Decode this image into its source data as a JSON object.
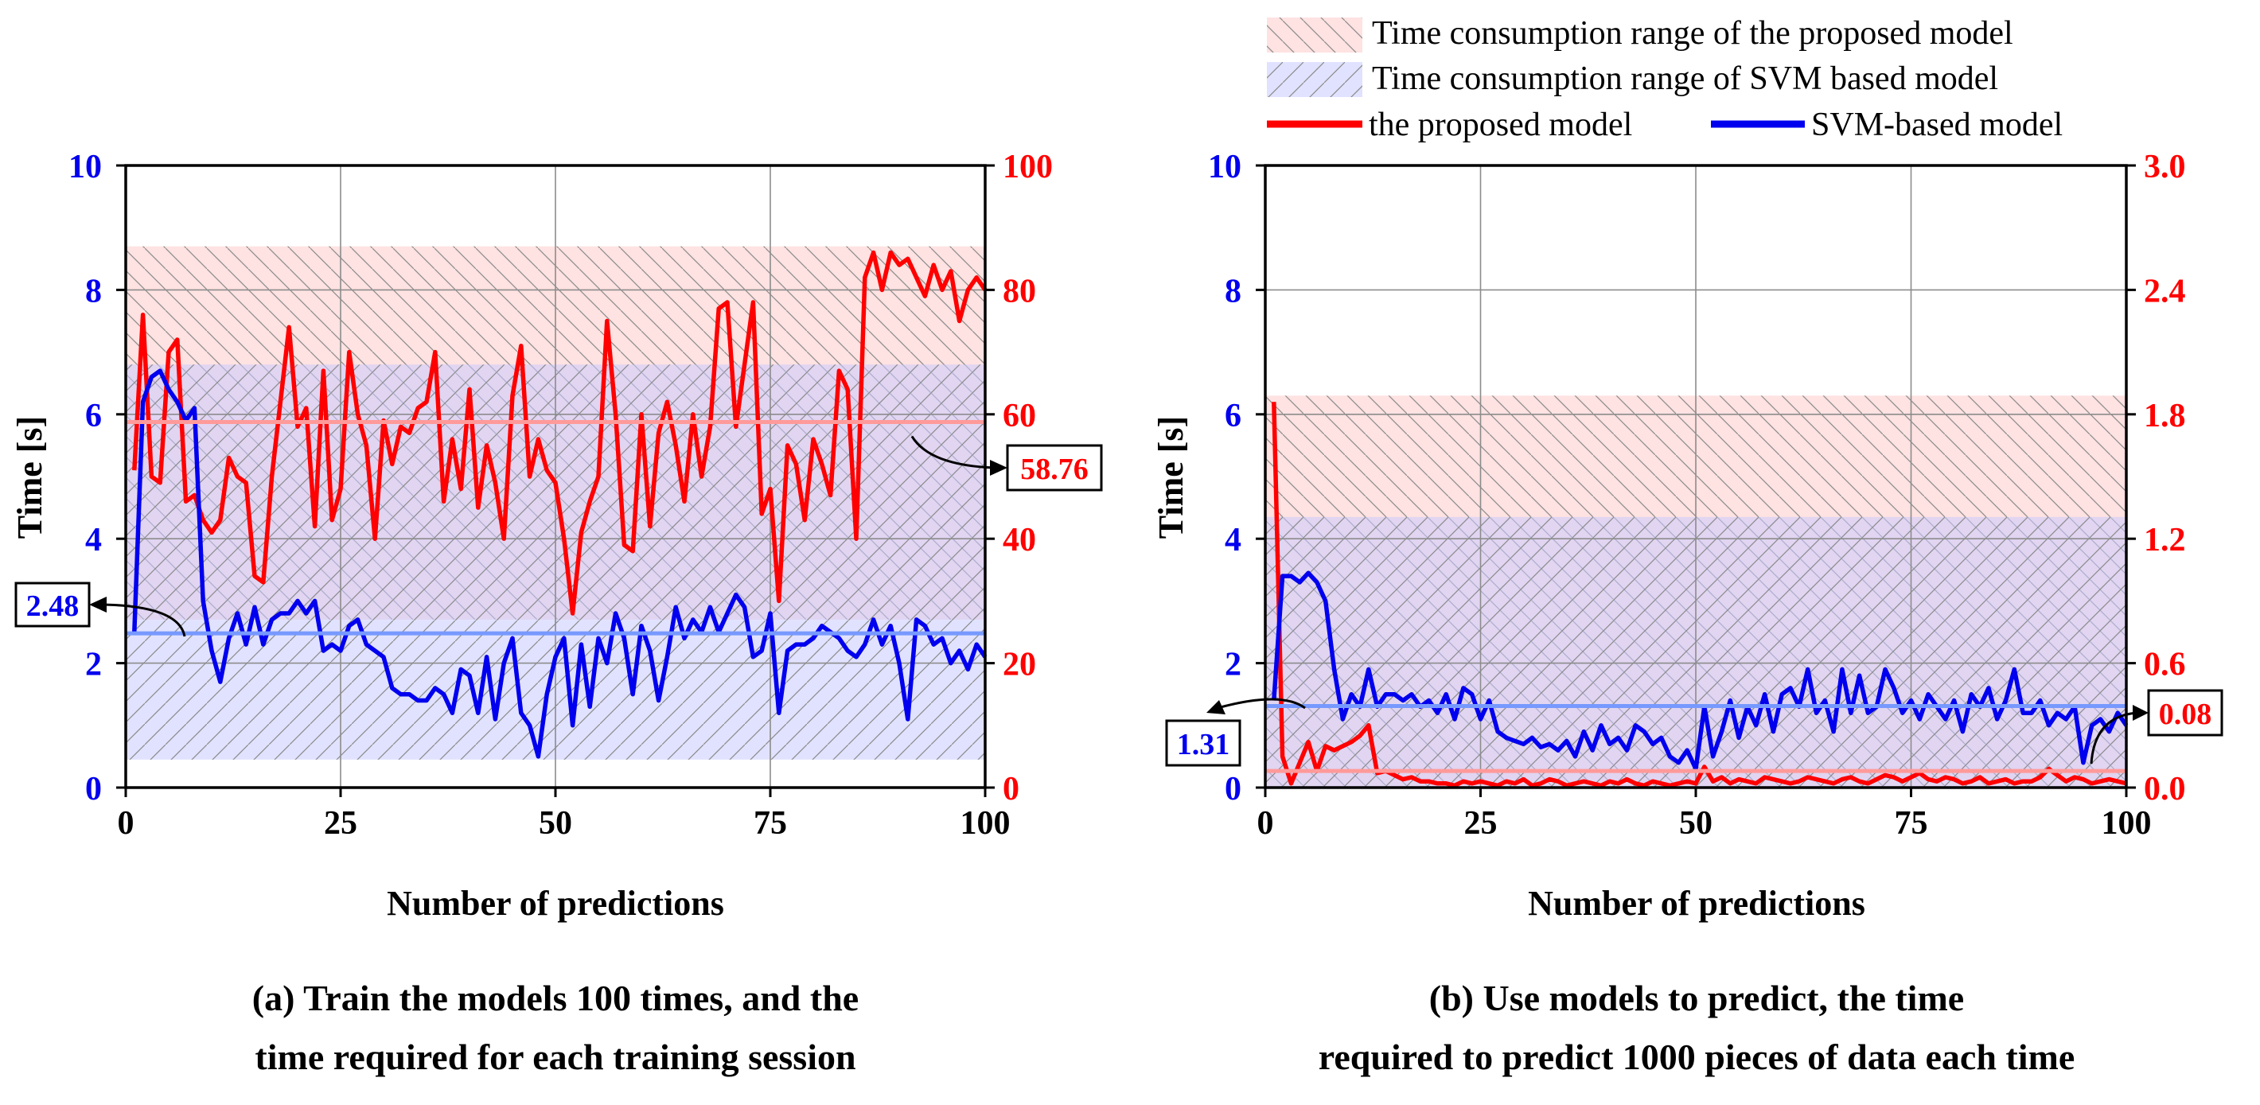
{
  "legend": {
    "proposed_range": "Time consumption range of the proposed model",
    "svm_range": "Time consumption range of SVM based model",
    "proposed_line": "the proposed model",
    "svm_line": "SVM-based model"
  },
  "colors": {
    "red": "#ff0000",
    "blue": "#0000ee",
    "avg_red": "#ff9a9a",
    "avg_blue": "#7799ff",
    "band_red": "#ffcaca",
    "band_blue": "#c9caff"
  },
  "chart_data": [
    {
      "type": "line",
      "xlabel": "Number of predictions",
      "ylabel": "Time [s]",
      "caption_line1": "(a) Train the models 100 times, and the",
      "caption_line2": "time required for each training session",
      "x_ticks": [
        "0",
        "25",
        "50",
        "75",
        "100"
      ],
      "y_left_ticks": [
        "0",
        "2",
        "4",
        "6",
        "8",
        "10"
      ],
      "y_right_ticks": [
        "0",
        "20",
        "40",
        "60",
        "80",
        "100"
      ],
      "xlim": [
        0,
        100
      ],
      "ylim_left": [
        0,
        10
      ],
      "ylim_right": [
        0,
        100
      ],
      "proposed_range": [
        27,
        87
      ],
      "svm_range": [
        0.45,
        6.8
      ],
      "proposed_avg": 58.76,
      "svm_avg": 2.48,
      "proposed_avg_label": "58.76",
      "svm_avg_label": "2.48",
      "series": [
        {
          "name": "the proposed model",
          "axis": "right",
          "color": "#ff0000",
          "x": [
            1,
            2,
            3,
            4,
            5,
            6,
            7,
            8,
            9,
            10,
            11,
            12,
            13,
            14,
            15,
            16,
            17,
            18,
            19,
            20,
            21,
            22,
            23,
            24,
            25,
            26,
            27,
            28,
            29,
            30,
            31,
            32,
            33,
            34,
            35,
            36,
            37,
            38,
            39,
            40,
            41,
            42,
            43,
            44,
            45,
            46,
            47,
            48,
            49,
            50,
            51,
            52,
            53,
            54,
            55,
            56,
            57,
            58,
            59,
            60,
            61,
            62,
            63,
            64,
            65,
            66,
            67,
            68,
            69,
            70,
            71,
            72,
            73,
            74,
            75,
            76,
            77,
            78,
            79,
            80,
            81,
            82,
            83,
            84,
            85,
            86,
            87,
            88,
            89,
            90,
            91,
            92,
            93,
            94,
            95,
            96,
            97,
            98,
            99,
            100
          ],
          "values": [
            51,
            76,
            50,
            49,
            70,
            72,
            46,
            47,
            43,
            41,
            43,
            53,
            50,
            49,
            34,
            33,
            50,
            62,
            74,
            58,
            61,
            42,
            67,
            43,
            48,
            70,
            60,
            55,
            40,
            59,
            52,
            58,
            57,
            61,
            62,
            70,
            46,
            56,
            48,
            64,
            45,
            55,
            49,
            40,
            63,
            71,
            50,
            56,
            51,
            49,
            40,
            28,
            41,
            46,
            50,
            75,
            60,
            39,
            38,
            60,
            42,
            57,
            62,
            55,
            46,
            60,
            50,
            58,
            77,
            78,
            58,
            68,
            78,
            44,
            48,
            30,
            55,
            52,
            43,
            56,
            52,
            47,
            67,
            64,
            40,
            82,
            86,
            80,
            86,
            84,
            85,
            82,
            79,
            84,
            80,
            83,
            75,
            80,
            82,
            80
          ]
        },
        {
          "name": "SVM-based model",
          "axis": "left",
          "color": "#0000ee",
          "x": [
            1,
            2,
            3,
            4,
            5,
            6,
            7,
            8,
            9,
            10,
            11,
            12,
            13,
            14,
            15,
            16,
            17,
            18,
            19,
            20,
            21,
            22,
            23,
            24,
            25,
            26,
            27,
            28,
            29,
            30,
            31,
            32,
            33,
            34,
            35,
            36,
            37,
            38,
            39,
            40,
            41,
            42,
            43,
            44,
            45,
            46,
            47,
            48,
            49,
            50,
            51,
            52,
            53,
            54,
            55,
            56,
            57,
            58,
            59,
            60,
            61,
            62,
            63,
            64,
            65,
            66,
            67,
            68,
            69,
            70,
            71,
            72,
            73,
            74,
            75,
            76,
            77,
            78,
            79,
            80,
            81,
            82,
            83,
            84,
            85,
            86,
            87,
            88,
            89,
            90,
            91,
            92,
            93,
            94,
            95,
            96,
            97,
            98,
            99,
            100
          ],
          "values": [
            2.5,
            6.2,
            6.6,
            6.7,
            6.4,
            6.2,
            5.9,
            6.1,
            3.0,
            2.2,
            1.7,
            2.4,
            2.8,
            2.3,
            2.9,
            2.3,
            2.7,
            2.8,
            2.8,
            3.0,
            2.8,
            3.0,
            2.2,
            2.3,
            2.2,
            2.6,
            2.7,
            2.3,
            2.2,
            2.1,
            1.6,
            1.5,
            1.5,
            1.4,
            1.4,
            1.6,
            1.5,
            1.2,
            1.9,
            1.8,
            1.2,
            2.1,
            1.1,
            2.0,
            2.4,
            1.2,
            1.0,
            0.5,
            1.5,
            2.1,
            2.4,
            1.0,
            2.3,
            1.3,
            2.4,
            2.0,
            2.8,
            2.4,
            1.5,
            2.6,
            2.2,
            1.4,
            2.1,
            2.9,
            2.4,
            2.7,
            2.5,
            2.9,
            2.5,
            2.8,
            3.1,
            2.9,
            2.1,
            2.2,
            2.8,
            1.2,
            2.2,
            2.3,
            2.3,
            2.4,
            2.6,
            2.5,
            2.4,
            2.2,
            2.1,
            2.3,
            2.7,
            2.3,
            2.6,
            2.0,
            1.1,
            2.7,
            2.6,
            2.3,
            2.4,
            2.0,
            2.2,
            1.9,
            2.3,
            2.1
          ]
        }
      ]
    },
    {
      "type": "line",
      "xlabel": "Number of predictions",
      "ylabel": "Time [s]",
      "caption_line1": "(b) Use models to predict, the time",
      "caption_line2": "required to predict 1000 pieces of data each time",
      "x_ticks": [
        "0",
        "25",
        "50",
        "75",
        "100"
      ],
      "y_left_ticks": [
        "0",
        "2",
        "4",
        "6",
        "8",
        "10"
      ],
      "y_right_ticks": [
        "0.0",
        "0.6",
        "1.2",
        "1.8",
        "2.4",
        "3.0"
      ],
      "xlim": [
        0,
        100
      ],
      "ylim_left": [
        0,
        10
      ],
      "ylim_right": [
        0,
        3
      ],
      "proposed_range": [
        0.0,
        1.89
      ],
      "svm_range": [
        0.0,
        4.35
      ],
      "proposed_avg": 0.08,
      "svm_avg": 1.31,
      "proposed_avg_label": "0.08",
      "svm_avg_label": "1.31",
      "series": [
        {
          "name": "the proposed model",
          "axis": "right",
          "color": "#ff0000",
          "x": [
            1,
            2,
            3,
            4,
            5,
            6,
            7,
            8,
            9,
            10,
            11,
            12,
            13,
            14,
            15,
            16,
            17,
            18,
            19,
            20,
            21,
            22,
            23,
            24,
            25,
            26,
            27,
            28,
            29,
            30,
            31,
            32,
            33,
            34,
            35,
            36,
            37,
            38,
            39,
            40,
            41,
            42,
            43,
            44,
            45,
            46,
            47,
            48,
            49,
            50,
            51,
            52,
            53,
            54,
            55,
            56,
            57,
            58,
            59,
            60,
            61,
            62,
            63,
            64,
            65,
            66,
            67,
            68,
            69,
            70,
            71,
            72,
            73,
            74,
            75,
            76,
            77,
            78,
            79,
            80,
            81,
            82,
            83,
            84,
            85,
            86,
            87,
            88,
            89,
            90,
            91,
            92,
            93,
            94,
            95,
            96,
            97,
            98,
            99,
            100
          ],
          "values": [
            1.86,
            0.15,
            0.02,
            0.12,
            0.22,
            0.08,
            0.2,
            0.18,
            0.2,
            0.22,
            0.25,
            0.3,
            0.07,
            0.08,
            0.06,
            0.04,
            0.05,
            0.03,
            0.03,
            0.02,
            0.02,
            0.01,
            0.03,
            0.02,
            0.03,
            0.02,
            0.01,
            0.03,
            0.02,
            0.04,
            0.01,
            0.02,
            0.04,
            0.03,
            0.01,
            0.02,
            0.03,
            0.02,
            0.01,
            0.03,
            0.02,
            0.04,
            0.02,
            0.01,
            0.03,
            0.02,
            0.01,
            0.02,
            0.03,
            0.02,
            0.1,
            0.03,
            0.05,
            0.02,
            0.04,
            0.03,
            0.02,
            0.05,
            0.04,
            0.03,
            0.02,
            0.03,
            0.05,
            0.04,
            0.03,
            0.02,
            0.04,
            0.05,
            0.03,
            0.02,
            0.04,
            0.06,
            0.05,
            0.03,
            0.05,
            0.07,
            0.04,
            0.03,
            0.05,
            0.04,
            0.02,
            0.03,
            0.05,
            0.02,
            0.03,
            0.04,
            0.02,
            0.03,
            0.03,
            0.05,
            0.09,
            0.06,
            0.03,
            0.05,
            0.04,
            0.02,
            0.03,
            0.04,
            0.03,
            0.02
          ]
        },
        {
          "name": "SVM-based model",
          "axis": "left",
          "color": "#0000ee",
          "x": [
            1,
            2,
            3,
            4,
            5,
            6,
            7,
            8,
            9,
            10,
            11,
            12,
            13,
            14,
            15,
            16,
            17,
            18,
            19,
            20,
            21,
            22,
            23,
            24,
            25,
            26,
            27,
            28,
            29,
            30,
            31,
            32,
            33,
            34,
            35,
            36,
            37,
            38,
            39,
            40,
            41,
            42,
            43,
            44,
            45,
            46,
            47,
            48,
            49,
            50,
            51,
            52,
            53,
            54,
            55,
            56,
            57,
            58,
            59,
            60,
            61,
            62,
            63,
            64,
            65,
            66,
            67,
            68,
            69,
            70,
            71,
            72,
            73,
            74,
            75,
            76,
            77,
            78,
            79,
            80,
            81,
            82,
            83,
            84,
            85,
            86,
            87,
            88,
            89,
            90,
            91,
            92,
            93,
            94,
            95,
            96,
            97,
            98,
            99,
            100
          ],
          "values": [
            1.4,
            3.4,
            3.4,
            3.3,
            3.45,
            3.3,
            3.0,
            1.9,
            1.1,
            1.5,
            1.3,
            1.9,
            1.3,
            1.5,
            1.5,
            1.4,
            1.5,
            1.3,
            1.4,
            1.2,
            1.5,
            1.1,
            1.6,
            1.5,
            1.1,
            1.4,
            0.9,
            0.8,
            0.75,
            0.7,
            0.8,
            0.65,
            0.7,
            0.6,
            0.75,
            0.5,
            0.9,
            0.6,
            1.0,
            0.7,
            0.8,
            0.6,
            1.0,
            0.9,
            0.7,
            0.8,
            0.5,
            0.4,
            0.6,
            0.3,
            1.3,
            0.5,
            0.9,
            1.4,
            0.8,
            1.3,
            1.0,
            1.5,
            0.9,
            1.5,
            1.6,
            1.3,
            1.9,
            1.2,
            1.4,
            0.9,
            1.9,
            1.2,
            1.8,
            1.2,
            1.3,
            1.9,
            1.6,
            1.2,
            1.4,
            1.1,
            1.5,
            1.3,
            1.1,
            1.4,
            0.9,
            1.5,
            1.3,
            1.6,
            1.1,
            1.4,
            1.9,
            1.2,
            1.2,
            1.4,
            1.0,
            1.2,
            1.1,
            1.3,
            0.4,
            1.0,
            1.1,
            0.9,
            1.2,
            1.0
          ]
        }
      ]
    }
  ]
}
